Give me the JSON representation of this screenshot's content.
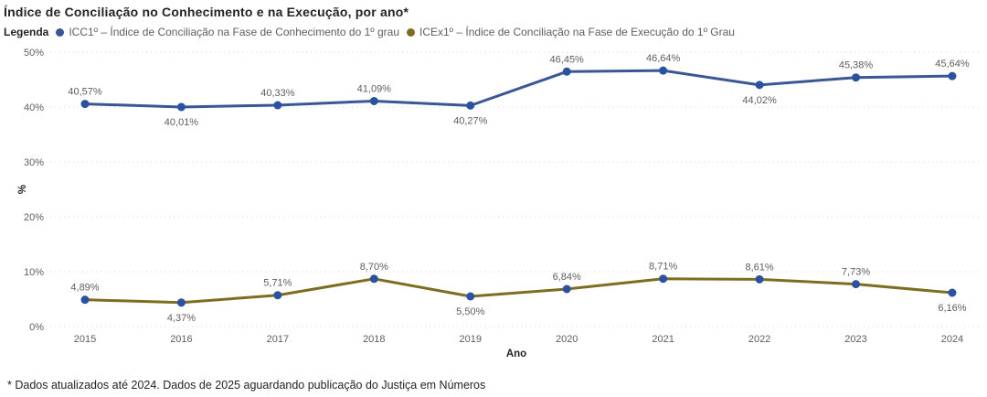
{
  "title": "Índice de Conciliação no Conhecimento e na Execução, por ano*",
  "legend": {
    "label": "Legenda",
    "items": [
      {
        "label": "ICC1º – Índice de Conciliação na Fase de Conhecimento do 1º grau",
        "color": "#3A5795"
      },
      {
        "label": "ICEx1º – Índice de Conciliação na Fase de Execução do 1º Grau",
        "color": "#7E6D20"
      }
    ]
  },
  "footnote": "* Dados atualizados até 2024. Dados de 2025 aguardando publicação do Justiça em Números",
  "chart_data": {
    "type": "line",
    "title": "Índice de Conciliação no Conhecimento e na Execução, por ano*",
    "xlabel": "Ano",
    "ylabel": "%",
    "ylim": [
      0,
      50
    ],
    "yticks": [
      "0%",
      "10%",
      "20%",
      "30%",
      "40%",
      "50%"
    ],
    "grid": "horizontal-dotted",
    "legend_position": "top",
    "categories": [
      "2015",
      "2016",
      "2017",
      "2018",
      "2019",
      "2020",
      "2021",
      "2022",
      "2023",
      "2024"
    ],
    "series": [
      {
        "name": "ICC1º – Índice de Conciliação na Fase de Conhecimento do 1º grau",
        "values": [
          40.57,
          40.01,
          40.33,
          41.09,
          40.27,
          46.45,
          46.64,
          44.02,
          45.38,
          45.64
        ],
        "labels": [
          "40,57%",
          "40,01%",
          "40,33%",
          "41,09%",
          "40,27%",
          "46,45%",
          "46,64%",
          "44,02%",
          "45,38%",
          "45,64%"
        ],
        "label_positions": [
          "above",
          "below",
          "above",
          "above",
          "below",
          "above",
          "above",
          "below",
          "above",
          "above"
        ],
        "color": "#3A5795",
        "marker_color": "#2B52A1"
      },
      {
        "name": "ICEx1º – Índice de Conciliação na Fase de Execução do 1º Grau",
        "values": [
          4.89,
          4.37,
          5.71,
          8.7,
          5.5,
          6.84,
          8.71,
          8.61,
          7.73,
          6.16
        ],
        "labels": [
          "4,89%",
          "4,37%",
          "5,71%",
          "8,70%",
          "5,50%",
          "6,84%",
          "8,71%",
          "8,61%",
          "7,73%",
          "6,16%"
        ],
        "label_positions": [
          "above",
          "below",
          "above",
          "above",
          "below",
          "above",
          "above",
          "above",
          "above",
          "below"
        ],
        "color": "#7E6D20",
        "marker_color": "#2B52A1"
      }
    ]
  }
}
